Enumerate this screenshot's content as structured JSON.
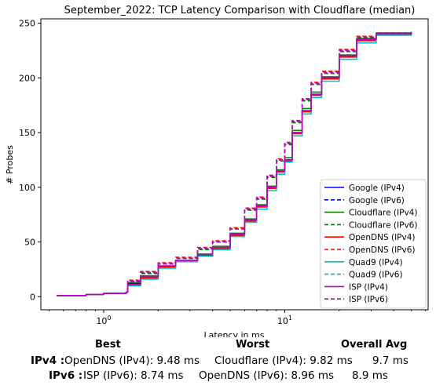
{
  "chart_data": {
    "type": "line",
    "title": "September_2022: TCP Latency Comparison with Cloudflare (median)",
    "xlabel": "Latency in ms",
    "ylabel": "# Probes",
    "xscale": "log",
    "xlim": [
      0.45,
      62
    ],
    "ylim": [
      -12,
      254
    ],
    "xticks": [
      1,
      10
    ],
    "xtick_labels": [
      "10^0",
      "10^1"
    ],
    "yticks": [
      0,
      50,
      100,
      150,
      200,
      250
    ],
    "legend_position": "lower-right",
    "series": [
      {
        "name": "Google (IPv4)",
        "color": "#0000ff",
        "style": "solid",
        "points": [
          [
            0.55,
            1
          ],
          [
            0.8,
            2
          ],
          [
            1.0,
            3
          ],
          [
            1.33,
            4
          ],
          [
            1.36,
            12
          ],
          [
            1.6,
            18
          ],
          [
            2.0,
            28
          ],
          [
            2.5,
            33
          ],
          [
            3.3,
            38
          ],
          [
            4.0,
            45
          ],
          [
            5.0,
            57
          ],
          [
            6.0,
            70
          ],
          [
            7.0,
            83
          ],
          [
            8.0,
            100
          ],
          [
            9.0,
            115
          ],
          [
            10.0,
            125
          ],
          [
            11.0,
            150
          ],
          [
            12.5,
            170
          ],
          [
            14.0,
            185
          ],
          [
            16.0,
            200
          ],
          [
            20.0,
            220
          ],
          [
            25.0,
            235
          ],
          [
            32.0,
            240
          ],
          [
            50.0,
            242
          ]
        ]
      },
      {
        "name": "Google (IPv6)",
        "color": "#0000ff",
        "style": "dashed",
        "points": [
          [
            0.55,
            1
          ],
          [
            0.8,
            2
          ],
          [
            1.0,
            3
          ],
          [
            1.33,
            4
          ],
          [
            1.36,
            14
          ],
          [
            1.6,
            22
          ],
          [
            2.0,
            30
          ],
          [
            2.5,
            35
          ],
          [
            3.3,
            44
          ],
          [
            4.0,
            50
          ],
          [
            5.0,
            62
          ],
          [
            6.0,
            80
          ],
          [
            7.0,
            90
          ],
          [
            8.0,
            110
          ],
          [
            9.0,
            125
          ],
          [
            10.0,
            140
          ],
          [
            11.0,
            160
          ],
          [
            12.5,
            180
          ],
          [
            14.0,
            195
          ],
          [
            16.0,
            205
          ],
          [
            20.0,
            225
          ],
          [
            25.0,
            237
          ],
          [
            32.0,
            241
          ],
          [
            50.0,
            242
          ]
        ]
      },
      {
        "name": "Cloudflare (IPv4)",
        "color": "#008000",
        "style": "solid",
        "points": [
          [
            0.55,
            1
          ],
          [
            0.8,
            2
          ],
          [
            1.0,
            3
          ],
          [
            1.33,
            4
          ],
          [
            1.36,
            13
          ],
          [
            1.6,
            19
          ],
          [
            2.0,
            28
          ],
          [
            2.5,
            33
          ],
          [
            3.3,
            39
          ],
          [
            4.0,
            46
          ],
          [
            5.0,
            58
          ],
          [
            6.0,
            71
          ],
          [
            7.0,
            84
          ],
          [
            8.0,
            101
          ],
          [
            9.0,
            116
          ],
          [
            10.0,
            127
          ],
          [
            11.0,
            152
          ],
          [
            12.5,
            172
          ],
          [
            14.0,
            187
          ],
          [
            16.0,
            201
          ],
          [
            20.0,
            221
          ],
          [
            25.0,
            236
          ],
          [
            32.0,
            241
          ],
          [
            50.0,
            242
          ]
        ]
      },
      {
        "name": "Cloudflare (IPv6)",
        "color": "#008000",
        "style": "dashed",
        "points": [
          [
            0.55,
            1
          ],
          [
            0.8,
            2
          ],
          [
            1.0,
            3
          ],
          [
            1.33,
            4
          ],
          [
            1.36,
            14
          ],
          [
            1.6,
            21
          ],
          [
            2.0,
            30
          ],
          [
            2.5,
            35
          ],
          [
            3.3,
            43
          ],
          [
            4.0,
            50
          ],
          [
            5.0,
            62
          ],
          [
            6.0,
            79
          ],
          [
            7.0,
            89
          ],
          [
            8.0,
            109
          ],
          [
            9.0,
            124
          ],
          [
            10.0,
            139
          ],
          [
            11.0,
            159
          ],
          [
            12.5,
            179
          ],
          [
            14.0,
            194
          ],
          [
            16.0,
            204
          ],
          [
            20.0,
            224
          ],
          [
            25.0,
            237
          ],
          [
            32.0,
            241
          ],
          [
            50.0,
            242
          ]
        ]
      },
      {
        "name": "OpenDNS (IPv4)",
        "color": "#ff0000",
        "style": "solid",
        "points": [
          [
            0.55,
            1
          ],
          [
            0.8,
            2
          ],
          [
            1.0,
            3
          ],
          [
            1.33,
            4
          ],
          [
            1.36,
            11
          ],
          [
            1.6,
            17
          ],
          [
            2.0,
            27
          ],
          [
            2.5,
            32
          ],
          [
            3.3,
            37
          ],
          [
            4.0,
            44
          ],
          [
            5.0,
            56
          ],
          [
            6.0,
            69
          ],
          [
            7.0,
            82
          ],
          [
            8.0,
            99
          ],
          [
            9.0,
            114
          ],
          [
            10.0,
            124
          ],
          [
            11.0,
            149
          ],
          [
            12.5,
            169
          ],
          [
            14.0,
            184
          ],
          [
            16.0,
            199
          ],
          [
            20.0,
            219
          ],
          [
            25.0,
            234
          ],
          [
            32.0,
            240
          ],
          [
            50.0,
            242
          ]
        ]
      },
      {
        "name": "OpenDNS (IPv6)",
        "color": "#ff0000",
        "style": "dashed",
        "points": [
          [
            0.55,
            1
          ],
          [
            0.8,
            2
          ],
          [
            1.0,
            3
          ],
          [
            1.33,
            4
          ],
          [
            1.36,
            15
          ],
          [
            1.6,
            23
          ],
          [
            2.0,
            31
          ],
          [
            2.5,
            36
          ],
          [
            3.3,
            45
          ],
          [
            4.0,
            51
          ],
          [
            5.0,
            63
          ],
          [
            6.0,
            81
          ],
          [
            7.0,
            91
          ],
          [
            8.0,
            111
          ],
          [
            9.0,
            126
          ],
          [
            10.0,
            141
          ],
          [
            11.0,
            161
          ],
          [
            12.5,
            181
          ],
          [
            14.0,
            196
          ],
          [
            16.0,
            206
          ],
          [
            20.0,
            226
          ],
          [
            25.0,
            238
          ],
          [
            32.0,
            241
          ],
          [
            50.0,
            242
          ]
        ]
      },
      {
        "name": "Quad9 (IPv4)",
        "color": "#00bfbf",
        "style": "solid",
        "points": [
          [
            0.55,
            1
          ],
          [
            0.8,
            2
          ],
          [
            1.0,
            3
          ],
          [
            1.33,
            4
          ],
          [
            1.36,
            10
          ],
          [
            1.6,
            16
          ],
          [
            2.0,
            26
          ],
          [
            2.5,
            32
          ],
          [
            3.3,
            37
          ],
          [
            4.0,
            43
          ],
          [
            5.0,
            55
          ],
          [
            6.0,
            68
          ],
          [
            7.0,
            80
          ],
          [
            8.0,
            97
          ],
          [
            9.0,
            112
          ],
          [
            10.0,
            123
          ],
          [
            11.0,
            147
          ],
          [
            12.5,
            167
          ],
          [
            14.0,
            182
          ],
          [
            16.0,
            197
          ],
          [
            20.0,
            217
          ],
          [
            25.0,
            232
          ],
          [
            32.0,
            239
          ],
          [
            50.0,
            242
          ]
        ]
      },
      {
        "name": "Quad9 (IPv6)",
        "color": "#00bfbf",
        "style": "dashed",
        "points": [
          [
            0.55,
            1
          ],
          [
            0.8,
            2
          ],
          [
            1.0,
            3
          ],
          [
            1.33,
            4
          ],
          [
            1.36,
            14
          ],
          [
            1.6,
            22
          ],
          [
            2.0,
            30
          ],
          [
            2.5,
            35
          ],
          [
            3.3,
            44
          ],
          [
            4.0,
            50
          ],
          [
            5.0,
            62
          ],
          [
            6.0,
            80
          ],
          [
            7.0,
            90
          ],
          [
            8.0,
            110
          ],
          [
            9.0,
            125
          ],
          [
            10.0,
            140
          ],
          [
            11.0,
            160
          ],
          [
            12.5,
            180
          ],
          [
            14.0,
            195
          ],
          [
            16.0,
            205
          ],
          [
            20.0,
            225
          ],
          [
            25.0,
            237
          ],
          [
            32.0,
            241
          ],
          [
            50.0,
            242
          ]
        ]
      },
      {
        "name": "ISP (IPv4)",
        "color": "#bf00bf",
        "style": "solid",
        "points": [
          [
            0.55,
            1
          ],
          [
            0.8,
            2
          ],
          [
            1.0,
            3
          ],
          [
            1.33,
            4
          ],
          [
            1.36,
            11
          ],
          [
            1.6,
            18
          ],
          [
            2.0,
            28
          ],
          [
            2.5,
            33
          ],
          [
            3.3,
            38
          ],
          [
            4.0,
            45
          ],
          [
            5.0,
            57
          ],
          [
            6.0,
            70
          ],
          [
            7.0,
            83
          ],
          [
            8.0,
            100
          ],
          [
            9.0,
            115
          ],
          [
            10.0,
            125
          ],
          [
            11.0,
            150
          ],
          [
            12.5,
            170
          ],
          [
            14.0,
            185
          ],
          [
            16.0,
            200
          ],
          [
            20.0,
            220
          ],
          [
            25.0,
            235
          ],
          [
            32.0,
            240
          ],
          [
            50.0,
            242
          ]
        ]
      },
      {
        "name": "ISP (IPv6)",
        "color": "#bf00bf",
        "style": "dashed",
        "points": [
          [
            0.55,
            1
          ],
          [
            0.8,
            2
          ],
          [
            1.0,
            3
          ],
          [
            1.33,
            4
          ],
          [
            1.36,
            14
          ],
          [
            1.6,
            22
          ],
          [
            2.0,
            30
          ],
          [
            2.5,
            35
          ],
          [
            3.3,
            44
          ],
          [
            4.0,
            50
          ],
          [
            5.0,
            62
          ],
          [
            6.0,
            80
          ],
          [
            7.0,
            90
          ],
          [
            8.0,
            110
          ],
          [
            9.0,
            125
          ],
          [
            10.0,
            140
          ],
          [
            11.0,
            160
          ],
          [
            12.5,
            180
          ],
          [
            14.0,
            195
          ],
          [
            16.0,
            205
          ],
          [
            20.0,
            225
          ],
          [
            25.0,
            237
          ],
          [
            32.0,
            241
          ],
          [
            50.0,
            242
          ]
        ]
      }
    ]
  },
  "summary": {
    "headers": {
      "best": "Best",
      "worst": "Worst",
      "avg": "Overall Avg"
    },
    "ipv4": {
      "label": "IPv4 :",
      "best": "OpenDNS (IPv4): 9.48 ms",
      "worst": "Cloudflare (IPv4): 9.82 ms",
      "avg": "9.7 ms"
    },
    "ipv6": {
      "label": "IPv6 :",
      "best": "ISP (IPv6): 8.74 ms",
      "worst": "OpenDNS (IPv6): 8.96 ms",
      "avg": "8.9 ms"
    }
  }
}
